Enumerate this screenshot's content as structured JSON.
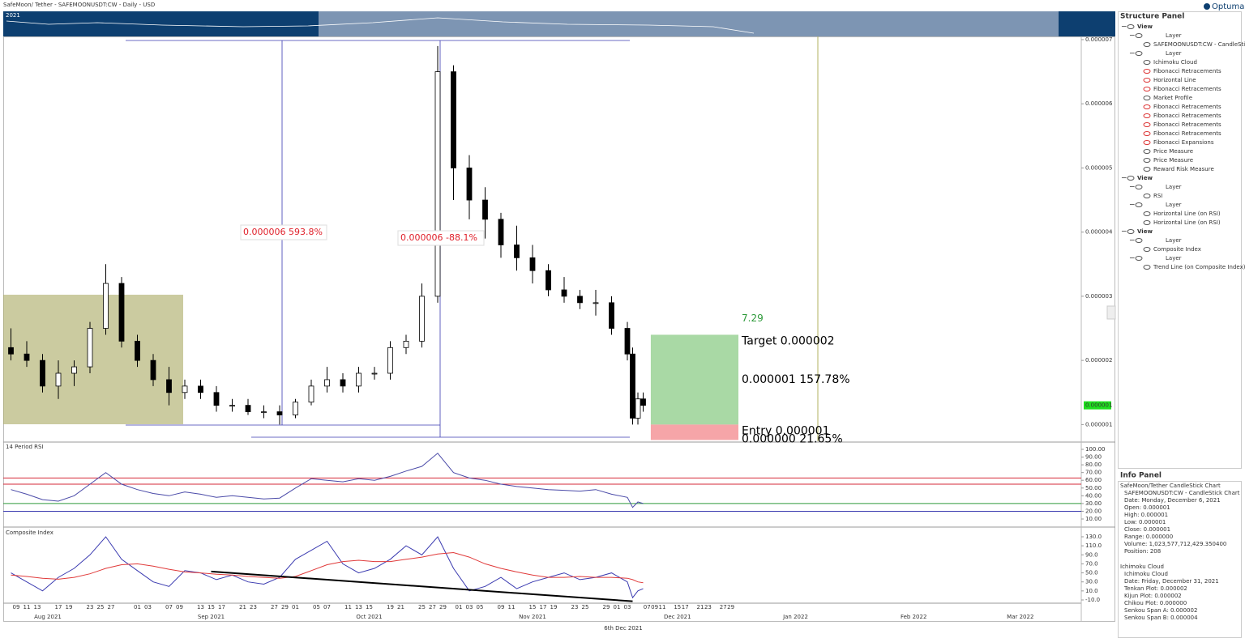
{
  "header": {
    "title": "SafeMoon/ Tether - SAFEMOONUSDT:CW - Daily - USD",
    "navigator_year": "2021",
    "brand": "Optuma"
  },
  "chart_data": [
    {
      "type": "candlestick",
      "x": [
        "2021-08-08",
        "2021-08-11",
        "2021-08-14",
        "2021-08-17",
        "2021-08-20",
        "2021-08-23",
        "2021-08-26",
        "2021-08-29",
        "2021-09-01",
        "2021-09-04",
        "2021-09-07",
        "2021-09-10",
        "2021-09-13",
        "2021-09-16",
        "2021-09-19",
        "2021-09-22",
        "2021-09-25",
        "2021-09-28",
        "2021-10-01",
        "2021-10-04",
        "2021-10-07",
        "2021-10-10",
        "2021-10-13",
        "2021-10-16",
        "2021-10-19",
        "2021-10-22",
        "2021-10-25",
        "2021-10-28",
        "2021-10-31",
        "2021-11-03",
        "2021-11-06",
        "2021-11-09",
        "2021-11-12",
        "2021-11-15",
        "2021-11-18",
        "2021-11-21",
        "2021-11-24",
        "2021-11-27",
        "2021-11-30",
        "2021-12-03",
        "2021-12-04",
        "2021-12-05",
        "2021-12-06"
      ],
      "open": [
        2.2e-06,
        2.1e-06,
        2e-06,
        1.6e-06,
        1.8e-06,
        1.9e-06,
        2.5e-06,
        3.2e-06,
        2.3e-06,
        2e-06,
        1.7e-06,
        1.5e-06,
        1.6e-06,
        1.5e-06,
        1.3e-06,
        1.3e-06,
        1.2e-06,
        1.2e-06,
        1.15e-06,
        1.35e-06,
        1.6e-06,
        1.7e-06,
        1.6e-06,
        1.8e-06,
        1.8e-06,
        2.2e-06,
        2.3e-06,
        3e-06,
        6.5e-06,
        5e-06,
        4.5e-06,
        4.2e-06,
        3.8e-06,
        3.6e-06,
        3.4e-06,
        3.1e-06,
        3e-06,
        2.9e-06,
        2.9e-06,
        2.5e-06,
        2.1e-06,
        1.1e-06,
        1.4e-06
      ],
      "high": [
        2.5e-06,
        2.3e-06,
        2.1e-06,
        2e-06,
        2e-06,
        2.6e-06,
        3.5e-06,
        3.3e-06,
        2.4e-06,
        2.1e-06,
        1.9e-06,
        1.7e-06,
        1.7e-06,
        1.6e-06,
        1.4e-06,
        1.4e-06,
        1.3e-06,
        1.3e-06,
        1.4e-06,
        1.7e-06,
        1.9e-06,
        1.8e-06,
        1.9e-06,
        1.9e-06,
        2.3e-06,
        2.4e-06,
        3.2e-06,
        6.9e-06,
        6.6e-06,
        5.2e-06,
        4.7e-06,
        4.3e-06,
        4.1e-06,
        3.8e-06,
        3.5e-06,
        3.3e-06,
        3.1e-06,
        3.1e-06,
        3e-06,
        2.6e-06,
        2.2e-06,
        1.5e-06,
        1.5e-06
      ],
      "low": [
        2e-06,
        1.9e-06,
        1.5e-06,
        1.4e-06,
        1.6e-06,
        1.8e-06,
        2.4e-06,
        2.2e-06,
        1.9e-06,
        1.6e-06,
        1.3e-06,
        1.4e-06,
        1.4e-06,
        1.2e-06,
        1.2e-06,
        1.15e-06,
        1.1e-06,
        1e-06,
        1.1e-06,
        1.3e-06,
        1.5e-06,
        1.5e-06,
        1.5e-06,
        1.7e-06,
        1.7e-06,
        2.1e-06,
        2.2e-06,
        2.9e-06,
        4.5e-06,
        4.2e-06,
        3.9e-06,
        3.6e-06,
        3.4e-06,
        3.2e-06,
        3e-06,
        2.9e-06,
        2.8e-06,
        2.7e-06,
        2.4e-06,
        2e-06,
        1e-06,
        1e-06,
        1.2e-06
      ],
      "close": [
        2.1e-06,
        2e-06,
        1.6e-06,
        1.8e-06,
        1.9e-06,
        2.5e-06,
        3.2e-06,
        2.3e-06,
        2e-06,
        1.7e-06,
        1.5e-06,
        1.6e-06,
        1.5e-06,
        1.3e-06,
        1.3e-06,
        1.2e-06,
        1.2e-06,
        1.15e-06,
        1.35e-06,
        1.6e-06,
        1.7e-06,
        1.6e-06,
        1.8e-06,
        1.8e-06,
        2.2e-06,
        2.3e-06,
        3e-06,
        6.5e-06,
        5e-06,
        4.5e-06,
        4.2e-06,
        3.8e-06,
        3.6e-06,
        3.4e-06,
        3.1e-06,
        3e-06,
        2.9e-06,
        2.9e-06,
        2.5e-06,
        2.1e-06,
        1.1e-06,
        1.4e-06,
        1.3e-06
      ],
      "ylim": [
        7.4e-07,
        7.05e-06
      ],
      "yticks": [
        1e-06,
        2e-06,
        3e-06,
        4e-06,
        5e-06,
        6e-06,
        7e-06
      ],
      "last_price_label": "0.000001",
      "annotations": [
        "0.000006  593.8%",
        "0.000006  -88.1%"
      ],
      "reward_risk": {
        "x": [
          "2021-12-08",
          "2021-12-31"
        ],
        "target": 2.4e-06,
        "entry": 1e-06,
        "stop": 7.6e-07,
        "ratio_label": "7.29",
        "target_label": "Target  0.000002",
        "reward_label": "0.000001  157.78%",
        "entry_label": "Entry  0.000001",
        "risk_label": "0.000000  21.65%"
      }
    },
    {
      "type": "line",
      "title": "14 Period RSI",
      "x": [
        "2021-08-08",
        "2021-08-11",
        "2021-08-14",
        "2021-08-17",
        "2021-08-20",
        "2021-08-23",
        "2021-08-26",
        "2021-08-29",
        "2021-09-01",
        "2021-09-04",
        "2021-09-07",
        "2021-09-10",
        "2021-09-13",
        "2021-09-16",
        "2021-09-19",
        "2021-09-22",
        "2021-09-25",
        "2021-09-28",
        "2021-10-01",
        "2021-10-04",
        "2021-10-07",
        "2021-10-10",
        "2021-10-13",
        "2021-10-16",
        "2021-10-19",
        "2021-10-22",
        "2021-10-25",
        "2021-10-28",
        "2021-10-31",
        "2021-11-03",
        "2021-11-06",
        "2021-11-09",
        "2021-11-12",
        "2021-11-15",
        "2021-11-18",
        "2021-11-21",
        "2021-11-24",
        "2021-11-27",
        "2021-11-30",
        "2021-12-03",
        "2021-12-04",
        "2021-12-05",
        "2021-12-06"
      ],
      "series": [
        {
          "color": "#4a4aa8",
          "values": [
            48,
            42,
            35,
            33,
            40,
            55,
            70,
            55,
            48,
            43,
            40,
            45,
            42,
            38,
            40,
            38,
            36,
            37,
            50,
            62,
            60,
            58,
            62,
            60,
            65,
            72,
            78,
            95,
            70,
            63,
            60,
            55,
            52,
            50,
            48,
            47,
            46,
            48,
            42,
            38,
            25,
            32,
            30
          ]
        }
      ],
      "levels": [
        {
          "value": 63,
          "color": "#d42a3a"
        },
        {
          "value": 55,
          "color": "#d42a3a"
        },
        {
          "value": 30,
          "color": "#2e9a3a"
        },
        {
          "value": 20,
          "color": "#3a3ab0"
        }
      ],
      "ylim": [
        0.6,
        109.4
      ],
      "yticks": [
        {
          "value": 10,
          "label": "10.00"
        },
        {
          "value": 20,
          "label": "20.00"
        },
        {
          "value": 30,
          "label": "30.00"
        },
        {
          "value": 40,
          "label": "40.00"
        },
        {
          "value": 50,
          "label": "50.00"
        },
        {
          "value": 60,
          "label": "60.00"
        },
        {
          "value": 70,
          "label": "70.00"
        },
        {
          "value": 80,
          "label": "80.00"
        },
        {
          "value": 90,
          "label": "90.00"
        },
        {
          "value": 100,
          "label": "100.00"
        }
      ]
    },
    {
      "type": "line",
      "title": "Composite Index",
      "x": [
        "2021-08-08",
        "2021-08-11",
        "2021-08-14",
        "2021-08-17",
        "2021-08-20",
        "2021-08-23",
        "2021-08-26",
        "2021-08-29",
        "2021-09-01",
        "2021-09-04",
        "2021-09-07",
        "2021-09-10",
        "2021-09-13",
        "2021-09-16",
        "2021-09-19",
        "2021-09-22",
        "2021-09-25",
        "2021-09-28",
        "2021-10-01",
        "2021-10-04",
        "2021-10-07",
        "2021-10-10",
        "2021-10-13",
        "2021-10-16",
        "2021-10-19",
        "2021-10-22",
        "2021-10-25",
        "2021-10-28",
        "2021-10-31",
        "2021-11-03",
        "2021-11-06",
        "2021-11-09",
        "2021-11-12",
        "2021-11-15",
        "2021-11-18",
        "2021-11-21",
        "2021-11-24",
        "2021-11-27",
        "2021-11-30",
        "2021-12-03",
        "2021-12-04",
        "2021-12-05",
        "2021-12-06"
      ],
      "series": [
        {
          "color": "#3a3ab0",
          "values": [
            50,
            30,
            10,
            40,
            60,
            90,
            130,
            80,
            55,
            30,
            20,
            55,
            50,
            35,
            45,
            30,
            25,
            40,
            80,
            100,
            120,
            70,
            50,
            60,
            80,
            110,
            90,
            130,
            60,
            10,
            20,
            40,
            15,
            30,
            40,
            50,
            35,
            40,
            50,
            30,
            -5,
            10,
            15
          ]
        },
        {
          "color": "#e03a3a",
          "values": [
            45,
            42,
            38,
            36,
            40,
            48,
            60,
            68,
            70,
            65,
            58,
            52,
            50,
            47,
            45,
            42,
            40,
            38,
            42,
            55,
            68,
            75,
            78,
            75,
            75,
            80,
            85,
            92,
            95,
            85,
            70,
            60,
            52,
            45,
            40,
            40,
            42,
            40,
            40,
            38,
            35,
            30,
            28
          ]
        }
      ],
      "trend_line": {
        "x": [
          "2021-09-15",
          "2021-12-04"
        ],
        "values": [
          53,
          -13
        ]
      },
      "ylim": [
        -17.2,
        149.7
      ],
      "yticks": [
        {
          "value": -10,
          "label": "-10.0"
        },
        {
          "value": 10,
          "label": "10.0"
        },
        {
          "value": 30,
          "label": "30.0"
        },
        {
          "value": 50,
          "label": "50.0"
        },
        {
          "value": 70,
          "label": "70.0"
        },
        {
          "value": 90,
          "label": "90.0"
        },
        {
          "value": 110,
          "label": "110.0"
        },
        {
          "value": 130,
          "label": "130.0"
        }
      ]
    }
  ],
  "x_axis": {
    "days": [
      {
        "value": "2021-08-09",
        "label": "09"
      },
      {
        "value": "2021-08-11",
        "label": "11"
      },
      {
        "value": "2021-08-13",
        "label": "13"
      },
      {
        "value": "2021-08-17",
        "label": "17"
      },
      {
        "value": "2021-08-19",
        "label": "19"
      },
      {
        "value": "2021-08-23",
        "label": "23"
      },
      {
        "value": "2021-08-25",
        "label": "25"
      },
      {
        "value": "2021-08-27",
        "label": "27"
      },
      {
        "value": "2021-09-01",
        "label": "01"
      },
      {
        "value": "2021-09-03",
        "label": "03"
      },
      {
        "value": "2021-09-07",
        "label": "07"
      },
      {
        "value": "2021-09-09",
        "label": "09"
      },
      {
        "value": "2021-09-13",
        "label": "13"
      },
      {
        "value": "2021-09-15",
        "label": "15"
      },
      {
        "value": "2021-09-17",
        "label": "17"
      },
      {
        "value": "2021-09-21",
        "label": "21"
      },
      {
        "value": "2021-09-23",
        "label": "23"
      },
      {
        "value": "2021-09-27",
        "label": "27"
      },
      {
        "value": "2021-09-29",
        "label": "29"
      },
      {
        "value": "2021-10-01",
        "label": "01"
      },
      {
        "value": "2021-10-05",
        "label": "05"
      },
      {
        "value": "2021-10-07",
        "label": "07"
      },
      {
        "value": "2021-10-11",
        "label": "11"
      },
      {
        "value": "2021-10-13",
        "label": "13"
      },
      {
        "value": "2021-10-15",
        "label": "15"
      },
      {
        "value": "2021-10-19",
        "label": "19"
      },
      {
        "value": "2021-10-21",
        "label": "21"
      },
      {
        "value": "2021-10-25",
        "label": "25"
      },
      {
        "value": "2021-10-27",
        "label": "27"
      },
      {
        "value": "2021-10-29",
        "label": "29"
      },
      {
        "value": "2021-11-01",
        "label": "01"
      },
      {
        "value": "2021-11-03",
        "label": "03"
      },
      {
        "value": "2021-11-05",
        "label": "05"
      },
      {
        "value": "2021-11-09",
        "label": "09"
      },
      {
        "value": "2021-11-11",
        "label": "11"
      },
      {
        "value": "2021-11-15",
        "label": "15"
      },
      {
        "value": "2021-11-17",
        "label": "17"
      },
      {
        "value": "2021-11-19",
        "label": "19"
      },
      {
        "value": "2021-11-23",
        "label": "23"
      },
      {
        "value": "2021-11-25",
        "label": "25"
      },
      {
        "value": "2021-11-29",
        "label": "29"
      },
      {
        "value": "2021-12-01",
        "label": "01"
      },
      {
        "value": "2021-12-03",
        "label": "03"
      },
      {
        "value": "2021-12-07",
        "label": "07"
      },
      {
        "value": "2021-12-09",
        "label": "09"
      },
      {
        "value": "2021-12-11",
        "label": "11"
      },
      {
        "value": "2021-12-15",
        "label": "15"
      },
      {
        "value": "2021-12-17",
        "label": "17"
      },
      {
        "value": "2021-12-21",
        "label": "21"
      },
      {
        "value": "2021-12-23",
        "label": "23"
      },
      {
        "value": "2021-12-27",
        "label": "27"
      },
      {
        "value": "2021-12-29",
        "label": "29"
      }
    ],
    "months": [
      {
        "value": "2021-08",
        "label": "Aug 2021"
      },
      {
        "value": "2021-09",
        "label": "Sep 2021"
      },
      {
        "value": "2021-10",
        "label": "Oct 2021"
      },
      {
        "value": "2021-11",
        "label": "Nov 2021"
      },
      {
        "value": "2021-12",
        "label": "Dec 2021"
      },
      {
        "value": "2022-01",
        "label": "Jan 2022"
      },
      {
        "value": "2022-02",
        "label": "Feb 2022"
      },
      {
        "value": "2022-03",
        "label": "Mar 2022"
      }
    ],
    "cursor_date": "6th Dec 2021"
  },
  "structure_panel": {
    "title": "Structure Panel",
    "items": [
      "View",
      "Layer",
      "SAFEMOONUSDT:CW - CandleStick Ch",
      "Layer",
      "Ichimoku Cloud",
      "Fibonacci Retracements",
      "Horizontal Line",
      "Fibonacci Retracements",
      "Market Profile",
      "Fibonacci Retracements",
      "Fibonacci Retracements",
      "Fibonacci Retracements",
      "Fibonacci Retracements",
      "Fibonacci Expansions",
      "Price Measure",
      "Price Measure",
      "Reward Risk Measure",
      "View",
      "Layer",
      "RSI",
      "Layer",
      "Horizontal Line (on RSI)",
      "Horizontal Line (on RSI)",
      "View",
      "Layer",
      "Composite Index",
      "Layer",
      "Trend Line (on Composite Index)"
    ]
  },
  "info_panel": {
    "title": "Info Panel",
    "lines": [
      "SafeMoon/Tether CandleStick Chart",
      "SAFEMOONUSDT:CW - CandleStick Chart",
      "Date: Monday, December 6, 2021",
      "Open: 0.000001",
      "High: 0.000001",
      "Low: 0.000001",
      "Close: 0.000001",
      "Range: 0.000000",
      "Volume: 1,023,577,712,429.350400",
      "Position: 208",
      "Ichimoku Cloud",
      "Ichimoku Cloud",
      "Date: Friday, December 31, 2021",
      "Tenkan Plot: 0.000002",
      "Kijun Plot: 0.000002",
      "Chikou Plot: 0.000000",
      "Senkou Span A: 0.000002",
      "Senkou Span B: 0.000004"
    ]
  }
}
